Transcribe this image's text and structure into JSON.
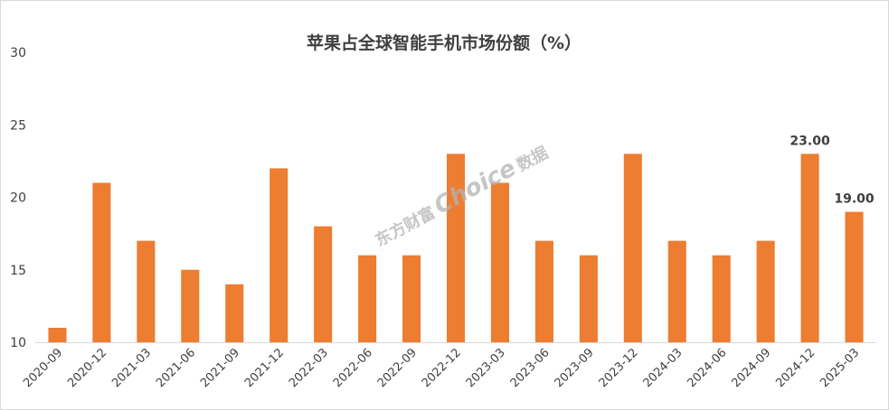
{
  "chart_data": {
    "type": "bar",
    "title": "苹果占全球智能手机市场份额（%）",
    "xlabel": "",
    "ylabel": "",
    "categories": [
      "2020-09",
      "2020-12",
      "2021-03",
      "2021-06",
      "2021-09",
      "2021-12",
      "2022-03",
      "2022-06",
      "2022-09",
      "2022-12",
      "2023-03",
      "2023-06",
      "2023-09",
      "2023-12",
      "2024-03",
      "2024-06",
      "2024-09",
      "2024-12",
      "2025-03"
    ],
    "series": [
      {
        "values": [
          11,
          21,
          17,
          15,
          14,
          22,
          18,
          16,
          16,
          23,
          21,
          17,
          16,
          23,
          17,
          16,
          17,
          23,
          19
        ]
      }
    ],
    "data_labels": [
      {
        "category": "2024-12",
        "text": "23.00"
      },
      {
        "category": "2025-03",
        "text": "19.00"
      }
    ],
    "ylim": [
      10,
      30
    ],
    "yticks": [
      "10",
      "15",
      "20",
      "25",
      "30"
    ],
    "grid": false,
    "legend": "none",
    "bar_color": "#ed7d31",
    "axis_color": "#d9d9d9",
    "text_color": "#404040"
  },
  "watermark": {
    "brand": "东方财富",
    "product": "Choice",
    "suffix": "数据"
  }
}
